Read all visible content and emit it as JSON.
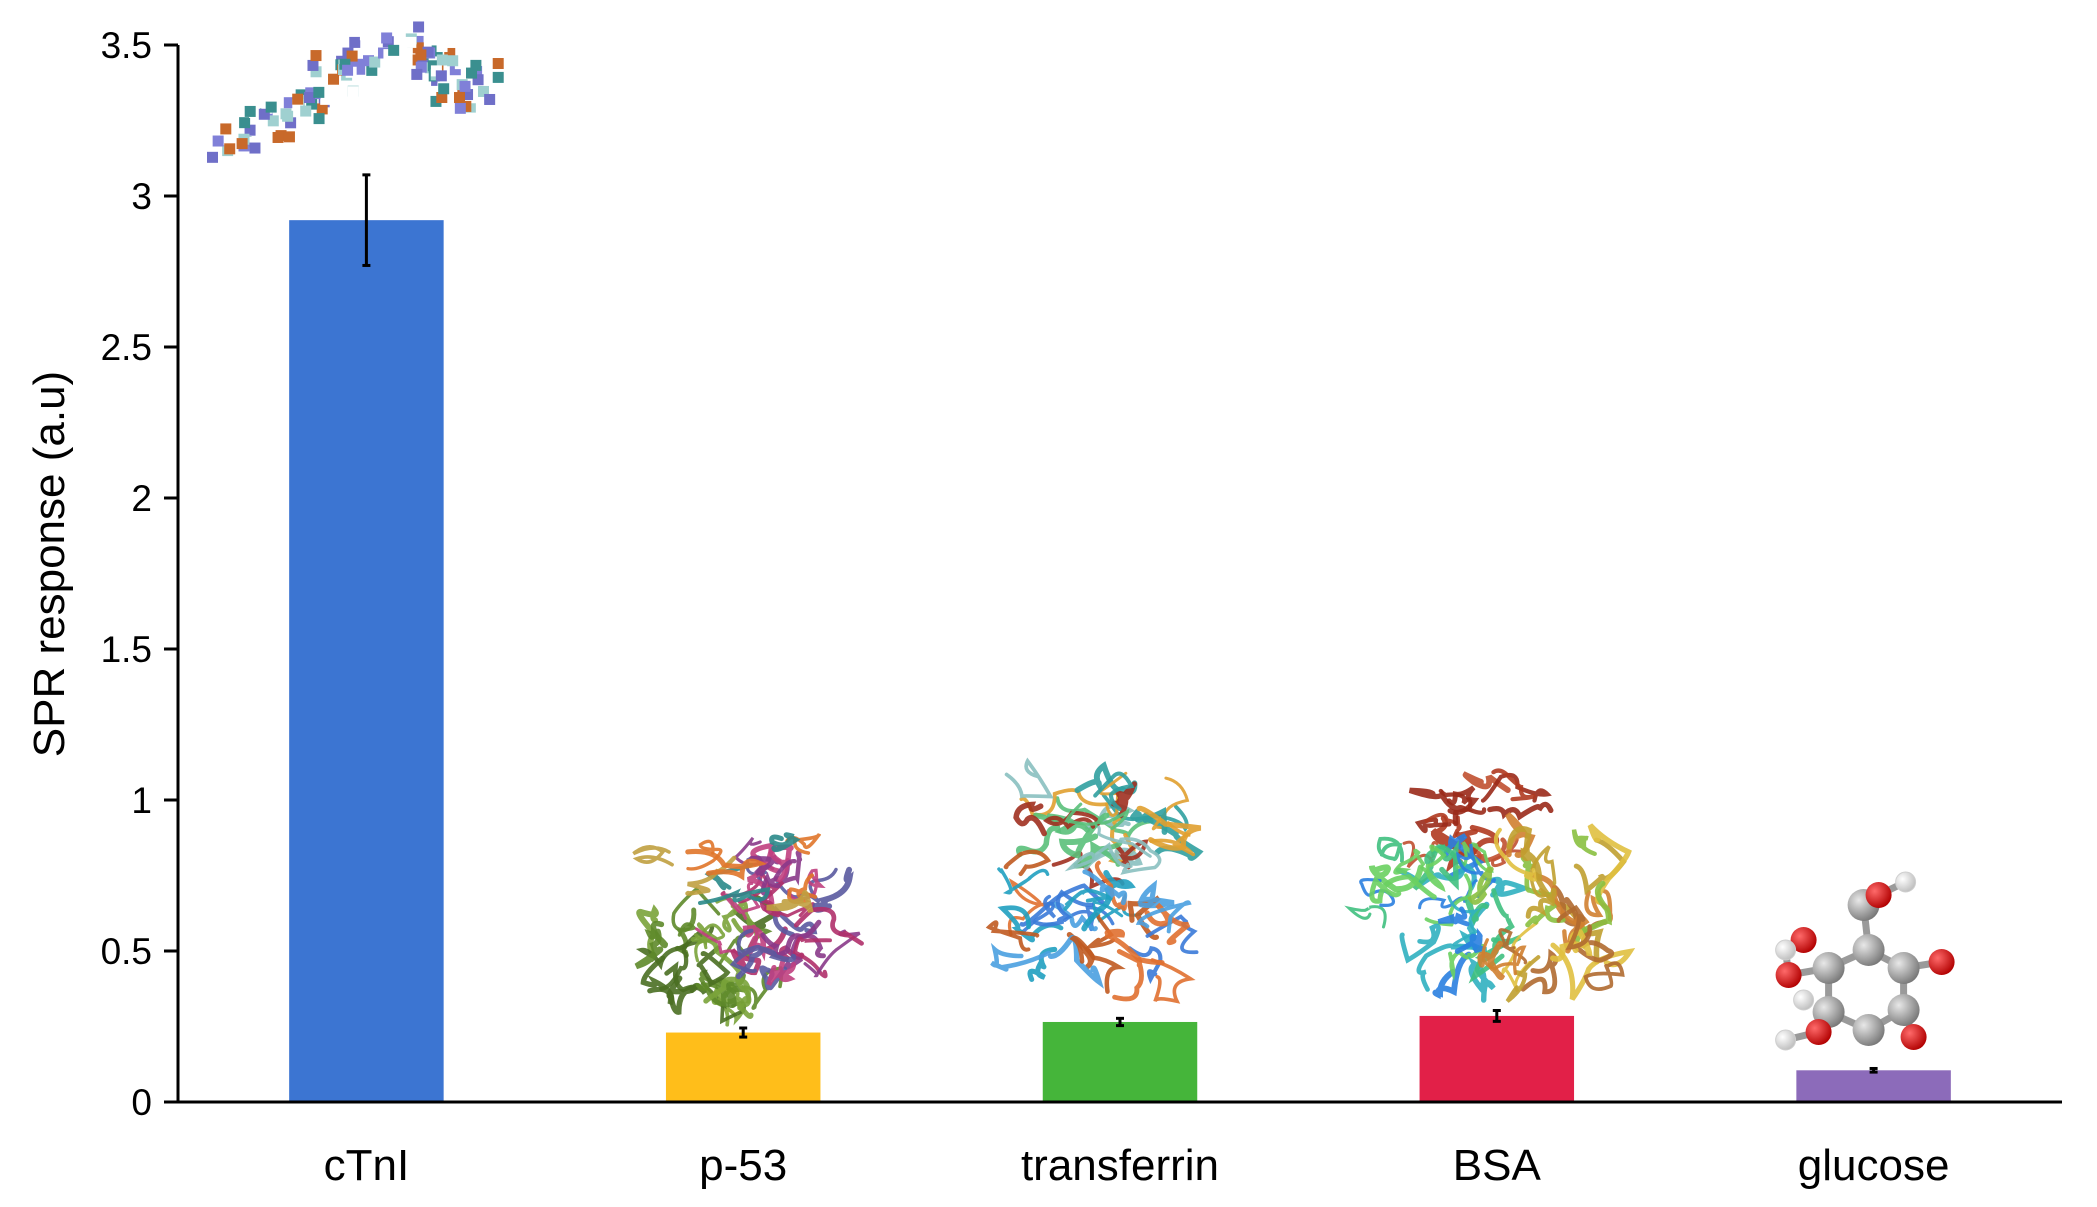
{
  "chart_data": {
    "type": "bar",
    "title": "",
    "xlabel": "",
    "ylabel": "SPR response (a.u)",
    "ylim": [
      0,
      3.5
    ],
    "yticks": [
      "0",
      "0.5",
      "1",
      "1.5",
      "2",
      "2.5",
      "3",
      "3.5"
    ],
    "grid": false,
    "legend": "none",
    "categories": [
      "cTnI",
      "p-53",
      "transferrin",
      "BSA",
      "glucose"
    ],
    "values": [
      2.92,
      0.23,
      0.265,
      0.285,
      0.105
    ],
    "errors": [
      0.15,
      0.015,
      0.012,
      0.018,
      0.006
    ],
    "colors": [
      "#3C75D2",
      "#FFBE1A",
      "#45B53A",
      "#E22048",
      "#8C6BBA"
    ],
    "icons": [
      "troponin-structure-icon",
      "p53-dna-structure-icon",
      "transferrin-structure-icon",
      "bsa-structure-icon",
      "glucose-molecule-icon"
    ]
  }
}
